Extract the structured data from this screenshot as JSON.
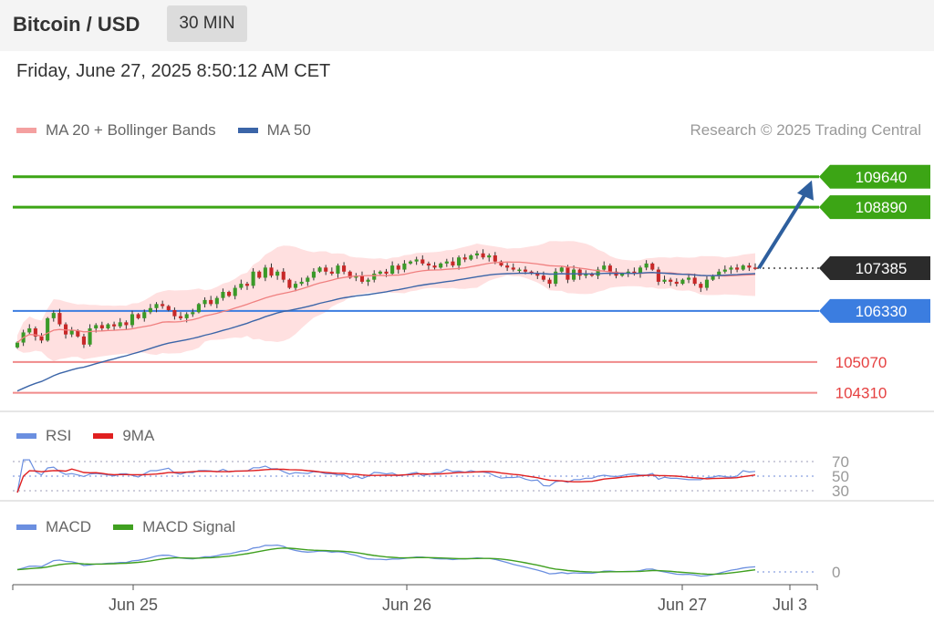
{
  "header": {
    "title": "Bitcoin / USD",
    "timeframe": "30 MIN",
    "datetime": "Friday, June 27, 2025 8:50:12 AM CET",
    "credit": "Research © 2025 Trading Central"
  },
  "colors": {
    "ma20": "#f08080",
    "bollinger_fill": "#ffd6d6",
    "ma50": "#3b65a8",
    "resistance": "#3ca515",
    "pivot": "#3b7de0",
    "support": "#e64040",
    "rsi": "#6b8fe0",
    "rsi_ma": "#e02020",
    "macd": "#6b8fe0",
    "macd_signal": "#40a020",
    "candle_up": "#3a9a28",
    "candle_down": "#c82828",
    "arrow": "#2e5f9e"
  },
  "legends": {
    "price": [
      {
        "name": "MA 20 + Bollinger Bands",
        "color": "#f4a0a0"
      },
      {
        "name": "MA 50",
        "color": "#3b65a8"
      }
    ],
    "rsi": [
      {
        "name": "RSI",
        "color": "#6b8fe0"
      },
      {
        "name": "9MA",
        "color": "#e02020"
      }
    ],
    "macd": [
      {
        "name": "MACD",
        "color": "#6b8fe0"
      },
      {
        "name": "MACD Signal",
        "color": "#40a020"
      }
    ]
  },
  "chart_data": [
    {
      "type": "candlestick",
      "title": "Bitcoin / USD",
      "ylim": [
        104100,
        110400
      ],
      "levels": [
        {
          "value": 109640,
          "label": "109640",
          "kind": "resistance"
        },
        {
          "value": 108890,
          "label": "108890",
          "kind": "resistance"
        },
        {
          "value": 107385,
          "label": "107385",
          "kind": "last"
        },
        {
          "value": 106330,
          "label": "106330",
          "kind": "pivot"
        },
        {
          "value": 105070,
          "label": "105070",
          "kind": "support"
        },
        {
          "value": 104310,
          "label": "104310",
          "kind": "support"
        }
      ],
      "x_ticks": [
        "Jun 25",
        "Jun 26",
        "Jun 27",
        "Jul 3"
      ],
      "closes": [
        105550,
        105800,
        105900,
        105700,
        105600,
        106150,
        106280,
        106000,
        105750,
        105850,
        105700,
        105500,
        105900,
        105980,
        105900,
        106000,
        105950,
        106050,
        105980,
        106250,
        106150,
        106300,
        106400,
        106500,
        106450,
        106350,
        106200,
        106150,
        106250,
        106300,
        106500,
        106600,
        106500,
        106650,
        106800,
        106700,
        106900,
        107000,
        106950,
        107300,
        107150,
        107400,
        107200,
        107300,
        107100,
        106900,
        107000,
        107050,
        107150,
        107300,
        107400,
        107300,
        107250,
        107450,
        107300,
        107150,
        107200,
        107050,
        107100,
        107250,
        107300,
        107250,
        107450,
        107350,
        107500,
        107550,
        107600,
        107500,
        107450,
        107400,
        107500,
        107550,
        107450,
        107650,
        107600,
        107700,
        107750,
        107650,
        107700,
        107550,
        107450,
        107400,
        107350,
        107350,
        107300,
        107250,
        107200,
        107100,
        107000,
        107300,
        107400,
        107100,
        107350,
        107200,
        107250,
        107200,
        107350,
        107450,
        107300,
        107200,
        107250,
        107300,
        107250,
        107400,
        107500,
        107350,
        107050,
        107100,
        107050,
        107000,
        107100,
        107150,
        107000,
        106900,
        107100,
        107200,
        107300,
        107350,
        107400,
        107350,
        107450,
        107400,
        107385
      ],
      "ma50_start": 104300,
      "arrow_target": 109640
    },
    {
      "type": "line",
      "title": "RSI",
      "y_ticks": [
        70,
        50,
        30
      ],
      "series": [
        {
          "name": "RSI"
        },
        {
          "name": "9MA"
        }
      ]
    },
    {
      "type": "line",
      "title": "MACD",
      "y_ticks": [
        0
      ],
      "series": [
        {
          "name": "MACD"
        },
        {
          "name": "MACD Signal"
        }
      ]
    }
  ]
}
